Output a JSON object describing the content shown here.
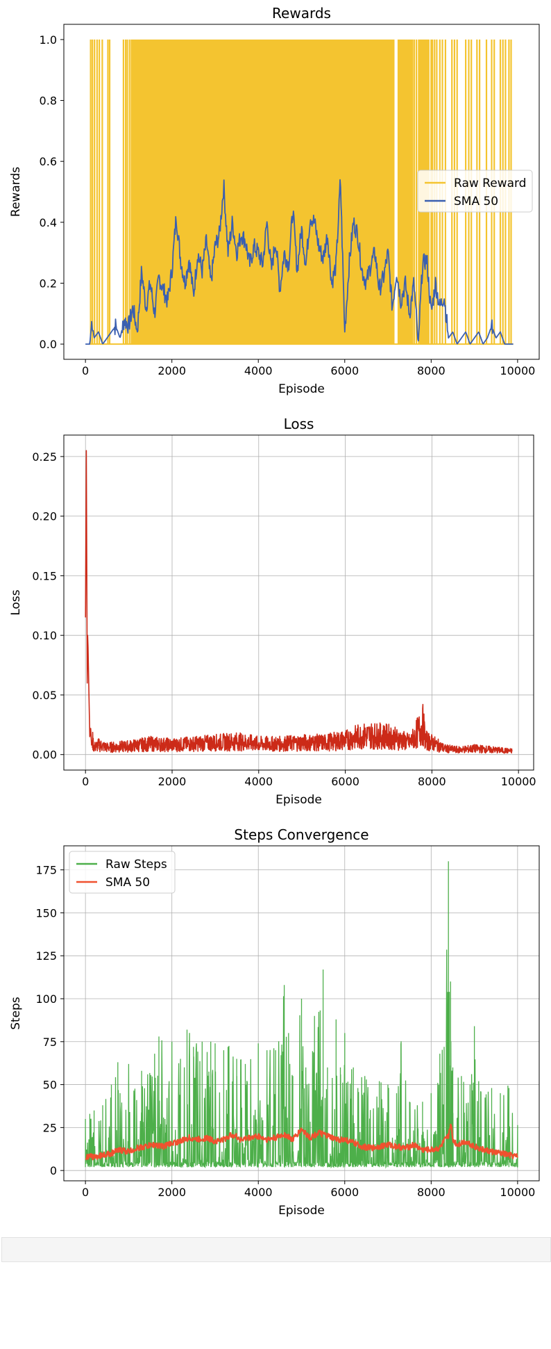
{
  "chart_data": [
    {
      "type": "line",
      "title": "Rewards",
      "xlabel": "Episode",
      "ylabel": "Rewards",
      "xlim": [
        -500,
        10500
      ],
      "ylim": [
        -0.05,
        1.05
      ],
      "xticks": [
        0,
        2000,
        4000,
        6000,
        8000,
        10000
      ],
      "yticks": [
        0.0,
        0.2,
        0.4,
        0.6,
        0.8,
        1.0
      ],
      "ytick_labels": [
        "0.0",
        "0.2",
        "0.4",
        "0.6",
        "0.8",
        "1.0"
      ],
      "grid": false,
      "legend_position": "center-right",
      "series": [
        {
          "name": "Raw Reward",
          "color": "#f4c430",
          "kind": "binary-fill",
          "description_points": {
            "episodes": [
              100,
              150,
              200,
              260,
              330,
              380,
              520,
              560,
              900,
              960,
              1000,
              1800,
              2500,
              3500,
              4500,
              5500,
              6500,
              7000,
              7200,
              7400,
              7600,
              7700,
              7800,
              7900,
              8000,
              8050,
              8300,
              8400,
              8600,
              8650,
              8800,
              8900,
              8950,
              9050,
              9200,
              9400,
              9550,
              9700,
              9850
            ],
            "values": [
              1,
              0,
              1,
              0,
              1,
              0,
              1,
              0,
              1,
              0,
              1,
              1,
              1,
              1,
              1,
              1,
              1,
              1,
              0,
              1,
              0,
              1,
              0,
              1,
              0,
              1,
              0,
              1,
              0,
              1,
              0,
              1,
              0,
              1,
              0,
              1,
              0,
              1,
              0
            ]
          }
        },
        {
          "name": "SMA 50",
          "color": "#3a5fb0",
          "x": [
            0,
            100,
            150,
            200,
            300,
            400,
            500,
            600,
            700,
            800,
            900,
            1000,
            1100,
            1200,
            1300,
            1400,
            1500,
            1600,
            1700,
            1800,
            1900,
            2000,
            2100,
            2200,
            2300,
            2400,
            2500,
            2600,
            2700,
            2800,
            2900,
            3000,
            3100,
            3200,
            3300,
            3400,
            3500,
            3600,
            3700,
            3800,
            3900,
            4000,
            4100,
            4200,
            4300,
            4400,
            4500,
            4600,
            4700,
            4800,
            4900,
            5000,
            5100,
            5200,
            5300,
            5400,
            5500,
            5600,
            5700,
            5800,
            5900,
            6000,
            6100,
            6200,
            6300,
            6400,
            6500,
            6600,
            6700,
            6800,
            6900,
            7000,
            7100,
            7200,
            7300,
            7400,
            7500,
            7600,
            7700,
            7800,
            7900,
            8000,
            8100,
            8200,
            8300,
            8400,
            8500,
            8600,
            8700,
            8800,
            8900,
            9000,
            9100,
            9200,
            9300,
            9400,
            9500,
            9600,
            9700,
            9800,
            9900
          ],
          "values": [
            0.0,
            0.0,
            0.08,
            0.02,
            0.04,
            0.0,
            0.02,
            0.04,
            0.06,
            0.02,
            0.08,
            0.06,
            0.12,
            0.04,
            0.24,
            0.12,
            0.2,
            0.1,
            0.22,
            0.18,
            0.14,
            0.24,
            0.42,
            0.28,
            0.2,
            0.28,
            0.16,
            0.3,
            0.24,
            0.34,
            0.2,
            0.32,
            0.36,
            0.52,
            0.3,
            0.4,
            0.3,
            0.36,
            0.34,
            0.26,
            0.32,
            0.3,
            0.26,
            0.4,
            0.24,
            0.34,
            0.18,
            0.3,
            0.26,
            0.44,
            0.24,
            0.38,
            0.26,
            0.42,
            0.4,
            0.32,
            0.28,
            0.36,
            0.2,
            0.26,
            0.54,
            0.04,
            0.26,
            0.4,
            0.36,
            0.24,
            0.2,
            0.26,
            0.3,
            0.18,
            0.22,
            0.3,
            0.12,
            0.24,
            0.14,
            0.2,
            0.1,
            0.2,
            0.0,
            0.26,
            0.28,
            0.1,
            0.2,
            0.12,
            0.16,
            0.02,
            0.04,
            0.0,
            0.02,
            0.04,
            0.0,
            0.02,
            0.04,
            0.0,
            0.02,
            0.06,
            0.02,
            0.04,
            0.0,
            0.0,
            0.0
          ]
        }
      ]
    },
    {
      "type": "line",
      "title": "Loss",
      "xlabel": "Episode",
      "ylabel": "Loss",
      "xlim": [
        -500,
        10350
      ],
      "ylim": [
        -0.013,
        0.268
      ],
      "xticks": [
        0,
        2000,
        4000,
        6000,
        8000,
        10000
      ],
      "yticks": [
        0.0,
        0.05,
        0.1,
        0.15,
        0.2,
        0.25
      ],
      "ytick_labels": [
        "0.00",
        "0.05",
        "0.10",
        "0.15",
        "0.20",
        "0.25"
      ],
      "grid": true,
      "series": [
        {
          "name": "",
          "color": "#cc2a18",
          "x": [
            0,
            20,
            40,
            50,
            60,
            80,
            100,
            120,
            140,
            160,
            200,
            300,
            500,
            1000,
            1500,
            2000,
            2500,
            3000,
            3500,
            4000,
            4500,
            5000,
            5500,
            6000,
            6300,
            6600,
            7000,
            7500,
            7800,
            7850,
            8000,
            8300,
            8600,
            9000,
            9400,
            9800
          ],
          "values": [
            0.115,
            0.255,
            0.06,
            0.1,
            0.09,
            0.05,
            0.015,
            0.022,
            0.008,
            0.012,
            0.006,
            0.008,
            0.006,
            0.007,
            0.009,
            0.008,
            0.009,
            0.01,
            0.011,
            0.009,
            0.009,
            0.01,
            0.01,
            0.012,
            0.015,
            0.016,
            0.015,
            0.01,
            0.025,
            0.012,
            0.01,
            0.005,
            0.004,
            0.005,
            0.004,
            0.003
          ]
        }
      ]
    },
    {
      "type": "line",
      "title": "Steps Convergence",
      "xlabel": "Episode",
      "ylabel": "Steps",
      "xlim": [
        -500,
        10500
      ],
      "ylim": [
        -6,
        189
      ],
      "xticks": [
        0,
        2000,
        4000,
        6000,
        8000,
        10000
      ],
      "yticks": [
        0,
        25,
        50,
        75,
        100,
        125,
        150,
        175
      ],
      "ytick_labels": [
        "0",
        "25",
        "50",
        "75",
        "100",
        "125",
        "150",
        "175"
      ],
      "grid": true,
      "legend_position": "top-left",
      "series": [
        {
          "name": "Raw Steps",
          "color": "#4daf4a",
          "x": [
            0,
            100,
            200,
            400,
            600,
            750,
            800,
            1000,
            1300,
            1600,
            1700,
            2000,
            2200,
            2350,
            2500,
            2700,
            2900,
            3000,
            3200,
            3300,
            3500,
            3700,
            4000,
            4200,
            4400,
            4600,
            4700,
            4800,
            5000,
            5100,
            5300,
            5500,
            5600,
            5800,
            5900,
            6000,
            6200,
            6500,
            6800,
            7000,
            7200,
            7300,
            7500,
            7800,
            8000,
            8200,
            8300,
            8400,
            8420,
            8450,
            8500,
            8700,
            8900,
            9000,
            9100,
            9400,
            9600,
            9800,
            10000
          ],
          "peaks": [
            30,
            33,
            35,
            38,
            50,
            63,
            45,
            62,
            58,
            68,
            78,
            75,
            65,
            82,
            72,
            75,
            75,
            74,
            70,
            72,
            65,
            62,
            74,
            70,
            70,
            108,
            80,
            55,
            100,
            60,
            90,
            117,
            60,
            88,
            60,
            80,
            60,
            53,
            52,
            50,
            45,
            74,
            40,
            40,
            45,
            68,
            72,
            180,
            104,
            110,
            60,
            55,
            50,
            84,
            52,
            48,
            45,
            48,
            26
          ],
          "floor": 2
        },
        {
          "name": "SMA 50",
          "color": "#f0512f",
          "x": [
            0,
            200,
            400,
            600,
            800,
            1000,
            1200,
            1400,
            1600,
            1800,
            2000,
            2200,
            2400,
            2600,
            2800,
            3000,
            3200,
            3400,
            3600,
            3800,
            4000,
            4200,
            4400,
            4600,
            4800,
            5000,
            5200,
            5400,
            5600,
            5800,
            6000,
            6200,
            6400,
            6600,
            6800,
            7000,
            7200,
            7400,
            7600,
            7800,
            8000,
            8200,
            8300,
            8400,
            8450,
            8500,
            8600,
            8800,
            9000,
            9200,
            9400,
            9600,
            9800,
            10000
          ],
          "values": [
            8,
            8,
            9,
            10,
            12,
            11,
            13,
            14,
            15,
            14,
            16,
            17,
            19,
            18,
            19,
            17,
            18,
            21,
            18,
            19,
            20,
            18,
            19,
            21,
            18,
            24,
            19,
            22,
            20,
            18,
            18,
            16,
            14,
            13,
            14,
            15,
            14,
            13,
            15,
            12,
            12,
            13,
            17,
            20,
            28,
            18,
            15,
            17,
            14,
            12,
            11,
            10,
            9,
            8
          ]
        }
      ]
    }
  ]
}
